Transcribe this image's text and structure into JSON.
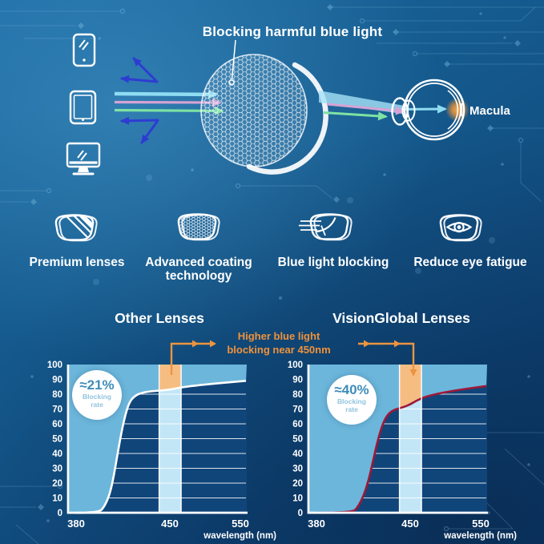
{
  "colors": {
    "accent_orange": "#ec9440",
    "band_orange": "#f6bd83",
    "fill_blue": "#6cb6db",
    "band_blue": "#c3e6f7",
    "plot_bg": "#10457a",
    "grid_white": "rgba(255,255,255,0.85)",
    "curve_other": "#ffffff",
    "curve_visionglobal": "#9e1838",
    "ray_cyan": "#8fdcf2",
    "ray_pink": "#d6a3d4",
    "ray_green": "#7de2a3",
    "reflected_blue": "#2e3cd2",
    "text_white": "#ffffff"
  },
  "hero": {
    "title": "Blocking harmful blue light",
    "macula_label": "Macula",
    "device_icons": [
      "smartphone-icon",
      "tablet-icon",
      "monitor-icon"
    ],
    "lens_icon": "coated-lens-icon",
    "eye_icon": "eye-cross-section-icon"
  },
  "features": [
    {
      "icon": "premium-lenses-icon",
      "label": "Premium lenses"
    },
    {
      "icon": "coating-technology-icon",
      "label": "Advanced coating technology"
    },
    {
      "icon": "blue-light-blocking-icon",
      "label": "Blue light blocking"
    },
    {
      "icon": "eye-fatigue-icon",
      "label": "Reduce eye fatigue"
    }
  ],
  "comparison": {
    "annotation_line1": "Higher blue light",
    "annotation_line2": "blocking near 450nm"
  },
  "chart_data": [
    {
      "type": "area",
      "title": "Other Lenses",
      "badge_value": "≈21%",
      "badge_label_line1": "Blocking",
      "badge_label_line2": "rate",
      "xlabel": "wavelength (nm)",
      "x_ticks": [
        380,
        450,
        550
      ],
      "y_ticks": [
        0,
        10,
        20,
        30,
        40,
        50,
        60,
        70,
        80,
        90,
        100
      ],
      "ylim": [
        0,
        100
      ],
      "xlim": [
        380,
        558
      ],
      "highlight_band_nm": [
        442,
        466
      ],
      "curve_color": "#ffffff",
      "x": [
        380,
        397,
        401,
        405,
        408,
        411,
        414,
        417,
        420,
        424,
        429,
        436,
        450,
        470,
        510,
        558
      ],
      "y": [
        0,
        0,
        4,
        12,
        24,
        40,
        55,
        67,
        75,
        79,
        81,
        82,
        83,
        85,
        87,
        89
      ]
    },
    {
      "type": "area",
      "title": "VisionGlobal Lenses",
      "badge_value": "≈40%",
      "badge_label_line1": "Blocking",
      "badge_label_line2": "rate",
      "xlabel": "wavelength (nm)",
      "x_ticks": [
        380,
        450,
        550
      ],
      "y_ticks": [
        0,
        10,
        20,
        30,
        40,
        50,
        60,
        70,
        80,
        90,
        100
      ],
      "ylim": [
        0,
        100
      ],
      "xlim": [
        380,
        558
      ],
      "highlight_band_nm": [
        442,
        466
      ],
      "curve_color": "#9e1838",
      "x": [
        380,
        407,
        411,
        415,
        419,
        422,
        425,
        428,
        431,
        434,
        438,
        444,
        450,
        458,
        470,
        490,
        520,
        558
      ],
      "y": [
        0,
        0,
        4,
        11,
        22,
        34,
        46,
        56,
        63,
        67,
        69.5,
        71,
        73,
        75.5,
        78,
        80.5,
        83,
        85.5
      ]
    }
  ]
}
